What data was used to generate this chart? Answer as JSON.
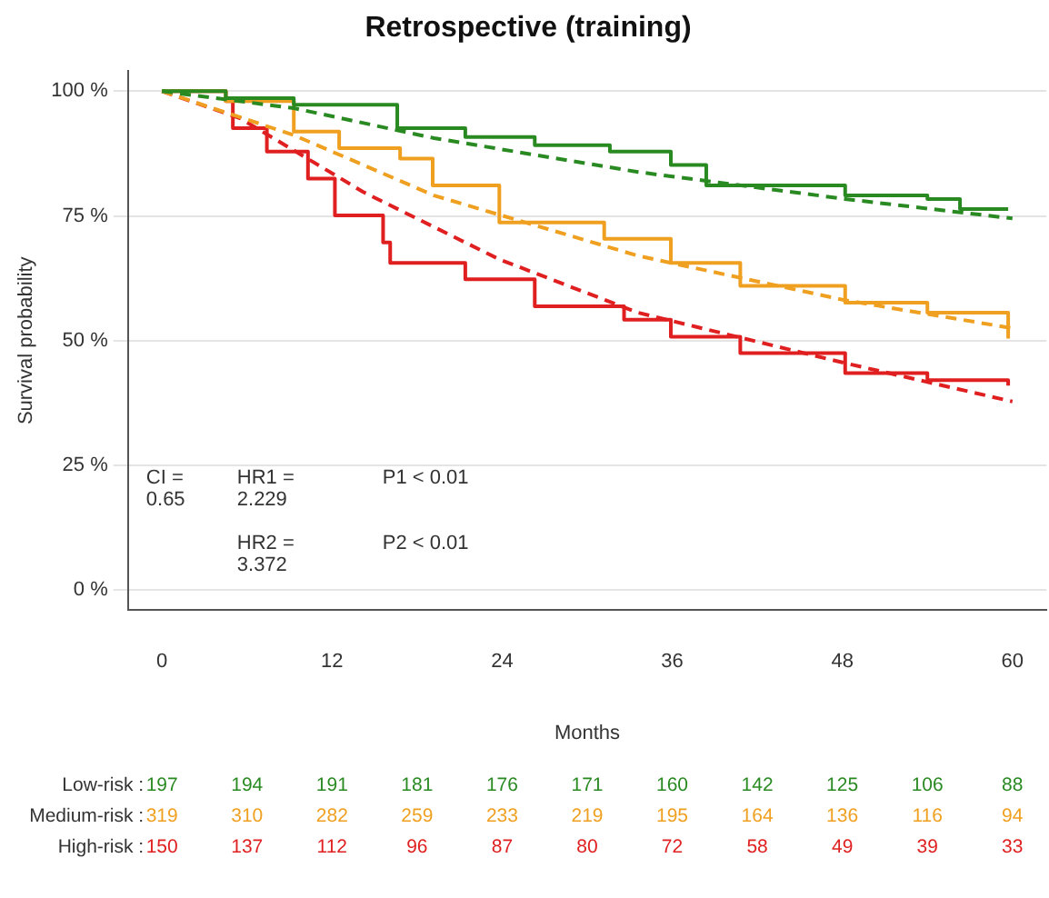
{
  "chart_data": {
    "type": "line",
    "title": "Retrospective (training)",
    "xlabel": "Months",
    "ylabel": "Survival probability",
    "xlim": [
      -2.4,
      62.4
    ],
    "xticks": [
      0,
      12,
      24,
      36,
      48,
      60
    ],
    "ylim": [
      -4,
      104
    ],
    "yticks": [
      {
        "value": 0,
        "label": "0 %"
      },
      {
        "value": 25,
        "label": "25 %"
      },
      {
        "value": 50,
        "label": "50 %"
      },
      {
        "value": 75,
        "label": "75 %"
      },
      {
        "value": 100,
        "label": "100 %"
      }
    ],
    "grid": "y",
    "legend": false,
    "marker": "none",
    "series": [
      {
        "type": "step",
        "color": "#2a8a22",
        "x": [
          0,
          4.5,
          9.3,
          16.6,
          21.4,
          26.3,
          31.6,
          35.9,
          38.4,
          46.7,
          48.2,
          54,
          56.3,
          59.7
        ],
        "values": [
          100,
          98.6,
          97.3,
          92.6,
          90.8,
          89.2,
          87.9,
          85.2,
          81.1,
          81.1,
          79.1,
          78.4,
          76.4,
          76.4
        ]
      },
      {
        "type": "line",
        "line_style": "dashed",
        "color": "#2a8a22",
        "x": [
          0,
          9.3,
          19.2,
          33.6,
          48.2,
          60
        ],
        "values": [
          100,
          96.6,
          90.6,
          83.8,
          78.4,
          74.5
        ]
      },
      {
        "type": "step",
        "color": "#f0a020",
        "x": [
          0,
          4.5,
          9.3,
          12.5,
          16.8,
          19.1,
          23.8,
          31.2,
          35.9,
          40.8,
          48.2,
          54,
          59.7
        ],
        "values": [
          100,
          98,
          91.9,
          88.6,
          86.5,
          81.1,
          73.7,
          70.4,
          65.6,
          61,
          57.6,
          55.6,
          50.4
        ]
      },
      {
        "type": "line",
        "line_style": "dashed",
        "color": "#f0a020",
        "x": [
          0,
          9.3,
          19.2,
          33.6,
          48.2,
          60
        ],
        "values": [
          100,
          91.2,
          79.1,
          67,
          58.1,
          52.5
        ]
      },
      {
        "type": "step",
        "color": "#e02020",
        "x": [
          0,
          4.5,
          5,
          7.4,
          10.3,
          12.2,
          15.6,
          16.1,
          21.4,
          26.3,
          32.6,
          35.9,
          40.8,
          48.2,
          54,
          59.7
        ],
        "values": [
          100,
          98,
          92.6,
          87.9,
          82.5,
          75.1,
          69.7,
          65.6,
          62.3,
          56.9,
          54.2,
          50.8,
          47.5,
          43.5,
          42.1,
          41
        ]
      },
      {
        "type": "line",
        "line_style": "dashed",
        "color": "#e02020",
        "x": [
          0,
          5.5,
          14.2,
          23.8,
          33.6,
          48.2,
          60
        ],
        "values": [
          100,
          94.6,
          79.8,
          66.3,
          55.6,
          45.5,
          37.8
        ]
      }
    ],
    "annotations": [
      "CI = 0.65",
      "HR1 = 2.229",
      "P1 < 0.01",
      "HR2 = 3.372",
      "P2 < 0.01",
      "Low-risk :",
      "197",
      "194",
      "191",
      "181",
      "176",
      "171",
      "160",
      "142",
      "125",
      "106",
      "88",
      "Medium-risk :",
      "319",
      "310",
      "282",
      "259",
      "233",
      "219",
      "195",
      "164",
      "136",
      "116",
      "94",
      "High-risk :",
      "150",
      "137",
      "112",
      "96",
      "87",
      "80",
      "72",
      "58",
      "49",
      "39",
      "33"
    ]
  }
}
